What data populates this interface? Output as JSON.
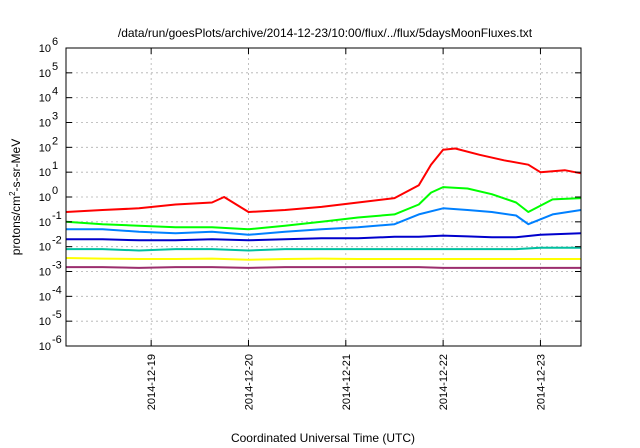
{
  "chart_data": {
    "type": "line",
    "title": "/data/run/goesPlots/archive/2014-12-23/10:00/flux/../flux/5daysMoonFluxes.txt",
    "xlabel": "Coordinated Universal Time (UTC)",
    "ylabel_parts": [
      "protons/cm",
      "2",
      "-s-sr-MeV"
    ],
    "yscale": "log",
    "ylim": [
      1e-06,
      1000000.0
    ],
    "y_ticks": [
      {
        "value": 1e-06,
        "base": "10",
        "exp": "-6"
      },
      {
        "value": 1e-05,
        "base": "10",
        "exp": "-5"
      },
      {
        "value": 0.0001,
        "base": "10",
        "exp": "-4"
      },
      {
        "value": 0.001,
        "base": "10",
        "exp": "-3"
      },
      {
        "value": 0.01,
        "base": "10",
        "exp": "-2"
      },
      {
        "value": 0.1,
        "base": "10",
        "exp": "-1"
      },
      {
        "value": 1.0,
        "base": "10",
        "exp": "0"
      },
      {
        "value": 10.0,
        "base": "10",
        "exp": "1"
      },
      {
        "value": 100.0,
        "base": "10",
        "exp": "2"
      },
      {
        "value": 1000.0,
        "base": "10",
        "exp": "3"
      },
      {
        "value": 10000.0,
        "base": "10",
        "exp": "4"
      },
      {
        "value": 100000.0,
        "base": "10",
        "exp": "5"
      },
      {
        "value": 1000000.0,
        "base": "10",
        "exp": "6"
      }
    ],
    "xlim": [
      "2014-12-18T03:00",
      "2014-12-23T10:00"
    ],
    "x_ticks": [
      {
        "value": "2014-12-19T00:00",
        "label": "2014-12-19"
      },
      {
        "value": "2014-12-20T00:00",
        "label": "2014-12-20"
      },
      {
        "value": "2014-12-21T00:00",
        "label": "2014-12-21"
      },
      {
        "value": "2014-12-22T00:00",
        "label": "2014-12-22"
      },
      {
        "value": "2014-12-23T00:00",
        "label": "2014-12-23"
      }
    ],
    "grid": true,
    "series": [
      {
        "color": "#ff0000",
        "x": [
          "2014-12-18T03:00",
          "2014-12-18T12:00",
          "2014-12-18T21:00",
          "2014-12-19T06:00",
          "2014-12-19T15:00",
          "2014-12-19T18:00",
          "2014-12-20T00:00",
          "2014-12-20T09:00",
          "2014-12-20T18:00",
          "2014-12-21T03:00",
          "2014-12-21T12:00",
          "2014-12-21T18:00",
          "2014-12-21T21:00",
          "2014-12-22T00:00",
          "2014-12-22T03:00",
          "2014-12-22T09:00",
          "2014-12-22T15:00",
          "2014-12-22T21:00",
          "2014-12-23T00:00",
          "2014-12-23T06:00",
          "2014-12-23T10:00"
        ],
        "y": [
          0.25,
          0.3,
          0.35,
          0.5,
          0.6,
          1.0,
          0.25,
          0.3,
          0.4,
          0.6,
          0.9,
          3,
          20,
          80,
          90,
          50,
          30,
          20,
          10,
          12,
          9
        ]
      },
      {
        "color": "#00ff00",
        "x": [
          "2014-12-18T03:00",
          "2014-12-18T12:00",
          "2014-12-18T21:00",
          "2014-12-19T06:00",
          "2014-12-19T15:00",
          "2014-12-20T00:00",
          "2014-12-20T09:00",
          "2014-12-20T18:00",
          "2014-12-21T03:00",
          "2014-12-21T12:00",
          "2014-12-21T18:00",
          "2014-12-21T21:00",
          "2014-12-22T00:00",
          "2014-12-22T06:00",
          "2014-12-22T12:00",
          "2014-12-22T18:00",
          "2014-12-22T21:00",
          "2014-12-23T03:00",
          "2014-12-23T10:00"
        ],
        "y": [
          0.1,
          0.08,
          0.07,
          0.06,
          0.06,
          0.05,
          0.07,
          0.1,
          0.15,
          0.2,
          0.5,
          1.5,
          2.5,
          2.2,
          1.3,
          0.6,
          0.25,
          0.8,
          0.9
        ]
      },
      {
        "color": "#0080ff",
        "x": [
          "2014-12-18T03:00",
          "2014-12-18T12:00",
          "2014-12-18T21:00",
          "2014-12-19T06:00",
          "2014-12-19T15:00",
          "2014-12-20T00:00",
          "2014-12-20T09:00",
          "2014-12-20T18:00",
          "2014-12-21T03:00",
          "2014-12-21T12:00",
          "2014-12-21T18:00",
          "2014-12-22T00:00",
          "2014-12-22T06:00",
          "2014-12-22T12:00",
          "2014-12-22T18:00",
          "2014-12-22T21:00",
          "2014-12-23T03:00",
          "2014-12-23T10:00"
        ],
        "y": [
          0.05,
          0.05,
          0.04,
          0.035,
          0.04,
          0.03,
          0.04,
          0.05,
          0.06,
          0.08,
          0.2,
          0.35,
          0.3,
          0.25,
          0.18,
          0.08,
          0.2,
          0.3
        ]
      },
      {
        "color": "#0000cc",
        "x": [
          "2014-12-18T03:00",
          "2014-12-18T12:00",
          "2014-12-18T21:00",
          "2014-12-19T06:00",
          "2014-12-19T15:00",
          "2014-12-20T00:00",
          "2014-12-20T09:00",
          "2014-12-20T18:00",
          "2014-12-21T03:00",
          "2014-12-21T12:00",
          "2014-12-21T18:00",
          "2014-12-22T00:00",
          "2014-12-22T06:00",
          "2014-12-22T12:00",
          "2014-12-22T18:00",
          "2014-12-23T00:00",
          "2014-12-23T10:00"
        ],
        "y": [
          0.02,
          0.02,
          0.018,
          0.018,
          0.02,
          0.018,
          0.02,
          0.022,
          0.022,
          0.025,
          0.025,
          0.028,
          0.026,
          0.024,
          0.024,
          0.03,
          0.035
        ]
      },
      {
        "color": "#00c0a0",
        "x": [
          "2014-12-18T03:00",
          "2014-12-18T12:00",
          "2014-12-18T21:00",
          "2014-12-19T06:00",
          "2014-12-19T15:00",
          "2014-12-20T00:00",
          "2014-12-20T09:00",
          "2014-12-20T18:00",
          "2014-12-21T03:00",
          "2014-12-21T12:00",
          "2014-12-21T18:00",
          "2014-12-22T00:00",
          "2014-12-22T06:00",
          "2014-12-22T12:00",
          "2014-12-22T18:00",
          "2014-12-23T00:00",
          "2014-12-23T10:00"
        ],
        "y": [
          0.008,
          0.008,
          0.007,
          0.008,
          0.008,
          0.007,
          0.008,
          0.008,
          0.008,
          0.008,
          0.008,
          0.008,
          0.008,
          0.008,
          0.008,
          0.009,
          0.009
        ]
      },
      {
        "color": "#ffff00",
        "x": [
          "2014-12-18T03:00",
          "2014-12-18T12:00",
          "2014-12-18T21:00",
          "2014-12-19T06:00",
          "2014-12-19T15:00",
          "2014-12-20T00:00",
          "2014-12-20T09:00",
          "2014-12-20T18:00",
          "2014-12-21T03:00",
          "2014-12-21T12:00",
          "2014-12-21T18:00",
          "2014-12-22T00:00",
          "2014-12-22T06:00",
          "2014-12-22T12:00",
          "2014-12-22T18:00",
          "2014-12-23T00:00",
          "2014-12-23T10:00"
        ],
        "y": [
          0.0035,
          0.0033,
          0.0032,
          0.0032,
          0.0033,
          0.003,
          0.0032,
          0.0033,
          0.0032,
          0.0032,
          0.0032,
          0.0032,
          0.0032,
          0.0032,
          0.0032,
          0.0032,
          0.0032
        ]
      },
      {
        "color": "#9b2d6e",
        "x": [
          "2014-12-18T03:00",
          "2014-12-18T12:00",
          "2014-12-18T21:00",
          "2014-12-19T06:00",
          "2014-12-19T15:00",
          "2014-12-20T00:00",
          "2014-12-20T09:00",
          "2014-12-20T18:00",
          "2014-12-21T03:00",
          "2014-12-21T12:00",
          "2014-12-21T18:00",
          "2014-12-22T00:00",
          "2014-12-22T06:00",
          "2014-12-22T12:00",
          "2014-12-22T18:00",
          "2014-12-23T00:00",
          "2014-12-23T10:00"
        ],
        "y": [
          0.0015,
          0.0015,
          0.0014,
          0.0015,
          0.0015,
          0.0014,
          0.0015,
          0.0015,
          0.0015,
          0.0015,
          0.0015,
          0.0014,
          0.0014,
          0.0014,
          0.0014,
          0.0014,
          0.0014
        ]
      }
    ]
  }
}
